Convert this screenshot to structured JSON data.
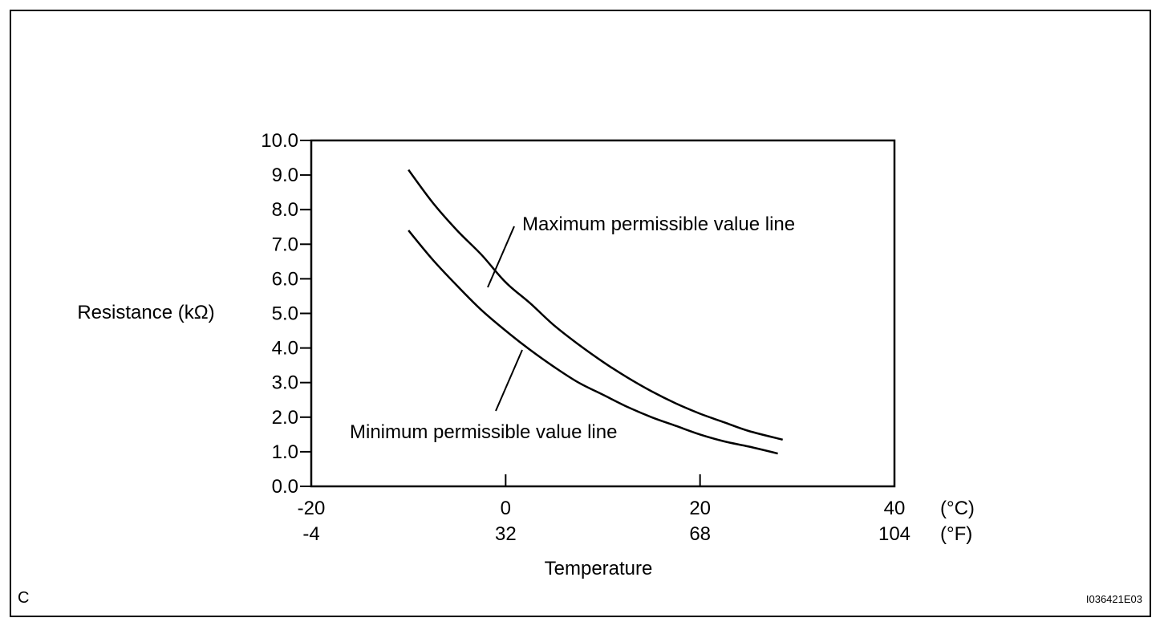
{
  "chart_data": {
    "type": "line",
    "ylabel": "Resistance (kΩ)",
    "xlabel": "Temperature",
    "ylim": [
      0,
      10
    ],
    "xlim": [
      -20,
      40
    ],
    "y_ticks": [
      "0.0",
      "1.0",
      "2.0",
      "3.0",
      "4.0",
      "5.0",
      "6.0",
      "7.0",
      "8.0",
      "9.0",
      "10.0"
    ],
    "x_ticks_c": [
      "-20",
      "0",
      "20",
      "40"
    ],
    "x_ticks_f": [
      "-4",
      "32",
      "68",
      "104"
    ],
    "unit_c": "(°C)",
    "unit_f": "(°F)",
    "grid": false,
    "series": [
      {
        "name": "Maximum permissible value line",
        "x": [
          -10,
          -7.5,
          -5,
          -2.5,
          0,
          2.5,
          5,
          7.5,
          10,
          12.5,
          15,
          17.5,
          20,
          22.5,
          25,
          28.5
        ],
        "y": [
          9.15,
          8.2,
          7.4,
          6.7,
          5.9,
          5.3,
          4.65,
          4.1,
          3.6,
          3.15,
          2.75,
          2.4,
          2.1,
          1.85,
          1.6,
          1.35
        ]
      },
      {
        "name": "Minimum permissible value line",
        "x": [
          -10,
          -7.5,
          -5,
          -2.5,
          0,
          2.5,
          5,
          7.5,
          10,
          12.5,
          15,
          17.5,
          20,
          22.5,
          25,
          28
        ],
        "y": [
          7.4,
          6.55,
          5.8,
          5.1,
          4.5,
          3.95,
          3.45,
          3.0,
          2.65,
          2.3,
          2.0,
          1.75,
          1.5,
          1.3,
          1.15,
          0.95
        ]
      }
    ]
  },
  "corner_label": "C",
  "figure_id": "I036421E03"
}
